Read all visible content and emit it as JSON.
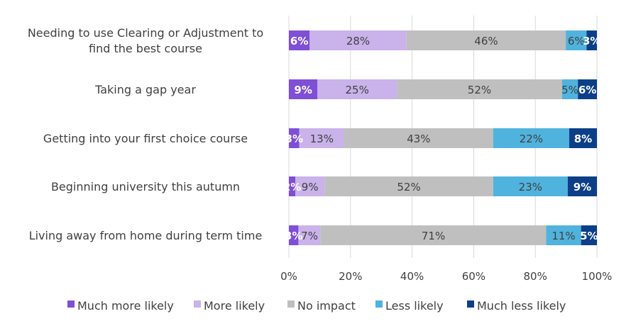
{
  "chart_data": {
    "type": "bar",
    "orientation": "horizontal",
    "stacked": "percent",
    "categories": [
      "Needing to use Clearing or Adjustment to find the best course",
      "Taking a gap year",
      "Getting into your first choice course",
      "Beginning university this autumn",
      "Living away from home during term time"
    ],
    "series": [
      {
        "name": "Much more likely",
        "color": "#7f4fd6",
        "values": [
          6,
          9,
          3,
          2,
          3
        ],
        "labels": [
          "6%",
          "9%",
          "3%",
          "2%",
          "3%"
        ]
      },
      {
        "name": "More likely",
        "color": "#c9b3ea",
        "values": [
          28,
          25,
          13,
          9,
          7
        ],
        "labels": [
          "28%",
          "25%",
          "13%",
          "9%",
          "7%"
        ]
      },
      {
        "name": "No impact",
        "color": "#bfbfbf",
        "values": [
          46,
          52,
          43,
          52,
          71
        ],
        "labels": [
          "46%",
          "52%",
          "43%",
          "52%",
          "71%"
        ]
      },
      {
        "name": "Less likely",
        "color": "#4fb3dd",
        "values": [
          6,
          5,
          22,
          23,
          11
        ],
        "labels": [
          "6%",
          "5%",
          "22%",
          "23%",
          "11%"
        ]
      },
      {
        "name": "Much less likely",
        "color": "#0c3f87",
        "values": [
          3,
          6,
          8,
          9,
          5
        ],
        "labels": [
          "3%",
          "6%",
          "8%",
          "9%",
          "5%"
        ]
      }
    ],
    "xlim": [
      0,
      100
    ],
    "x_ticks": [
      "0%",
      "20%",
      "40%",
      "60%",
      "80%",
      "100%"
    ],
    "grid": "vertical",
    "legend_position": "bottom",
    "title": "",
    "xlabel": "",
    "ylabel": ""
  }
}
